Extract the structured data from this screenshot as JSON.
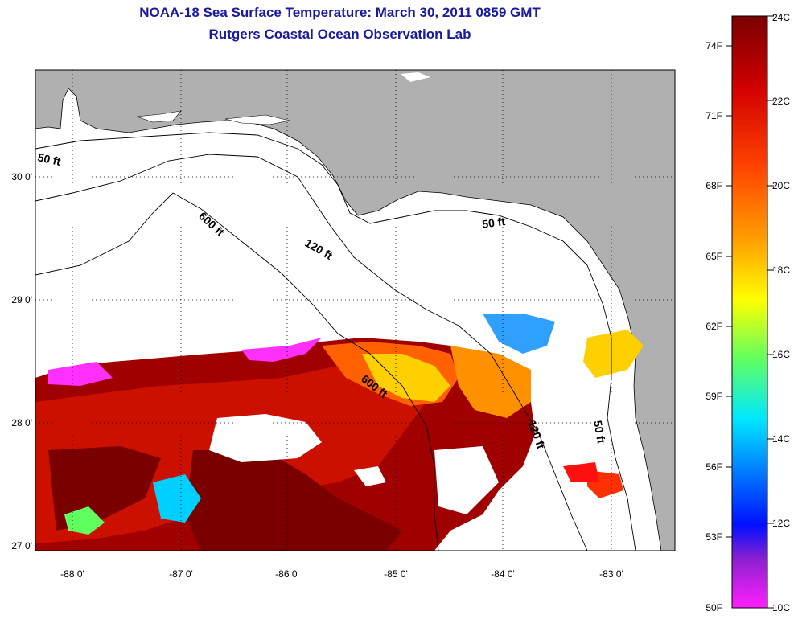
{
  "title": {
    "line1": "NOAA-18 Sea Surface Temperature:  March 30, 2011 0859 GMT",
    "line2": "Rutgers Coastal Ocean Observation Lab"
  },
  "map": {
    "lat_labels": [
      "30 0'",
      "29 0'",
      "28 0'",
      "27 0'"
    ],
    "lon_labels": [
      "-88 0'",
      "-87 0'",
      "-86 0'",
      "-85 0'",
      "-84 0'",
      "-83 0'"
    ],
    "contour_labels": [
      "50 ft",
      "600 ft",
      "120 ft",
      "50 ft",
      "600 ft",
      "120 ft",
      "50 ft"
    ]
  },
  "colorbar": {
    "fahrenheit_labels": [
      "74F",
      "71F",
      "68F",
      "65F",
      "62F",
      "59F",
      "56F",
      "53F",
      "50F"
    ],
    "celsius_labels": [
      "24C",
      "22C",
      "20C",
      "18C",
      "16C",
      "14C",
      "12C",
      "10C"
    ],
    "colors": [
      "#7a0000",
      "#c80000",
      "#ff3000",
      "#ff8c00",
      "#ffe000",
      "#b4ff30",
      "#30ff90",
      "#00e0ff",
      "#0090ff",
      "#0010ff",
      "#8020d0",
      "#ff20ff"
    ]
  }
}
